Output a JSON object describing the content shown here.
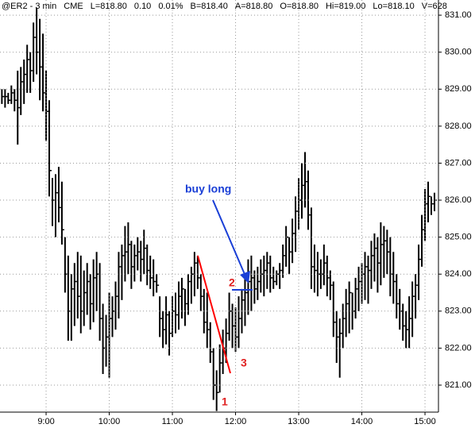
{
  "chart_data": {
    "type": "ohlc",
    "header": [
      "@ER2 - 3 min",
      "CME",
      "L=818.80",
      "0.10",
      "0.01%",
      "B=818.40",
      "A=818.80",
      "O=818.80",
      "Hi=819.00",
      "Lo=818.10",
      "V=628"
    ],
    "annotations": [
      "buy long",
      "1",
      "2",
      "3"
    ],
    "color": "#000000",
    "x": [
      498,
      501,
      504,
      507,
      510,
      513,
      516,
      519,
      522,
      525,
      528,
      531,
      534,
      537,
      540,
      543,
      546,
      549,
      552,
      555,
      558,
      561,
      564,
      567,
      570,
      573,
      576,
      579,
      582,
      585,
      588,
      591,
      594,
      597,
      600,
      603,
      606,
      609,
      612,
      615,
      618,
      621,
      624,
      627,
      630,
      633,
      636,
      639,
      642,
      645,
      648,
      651,
      654,
      657,
      660,
      663,
      666,
      669,
      672,
      675,
      678,
      681,
      684,
      687,
      690,
      693,
      696,
      699,
      702,
      705,
      708,
      711,
      714,
      717,
      720,
      723,
      726,
      729,
      732,
      735,
      738,
      741,
      744,
      747,
      750,
      753,
      756,
      759,
      762,
      765,
      768,
      771,
      774,
      777,
      780,
      783,
      786,
      789,
      792,
      795,
      798,
      801,
      804,
      807,
      810,
      813,
      816,
      819,
      822,
      825,
      828,
      831,
      834,
      837,
      840,
      843,
      846,
      849,
      852,
      855,
      858,
      861,
      864,
      867,
      870,
      873,
      876,
      879,
      882,
      885,
      888,
      891,
      894,
      897,
      900,
      903,
      906,
      909
    ],
    "high": [
      829.0,
      829.0,
      828.9,
      829.1,
      829.0,
      829.5,
      829.6,
      829.8,
      830.2,
      830.0,
      830.8,
      831.2,
      830.9,
      830.5,
      829.5,
      828.7,
      826.6,
      826.7,
      826.9,
      826.5,
      825.0,
      824.5,
      824.0,
      824.3,
      824.6,
      824.5,
      824.1,
      824.3,
      824.0,
      824.4,
      824.6,
      824.3,
      823.2,
      822.9,
      823.5,
      823.4,
      823.8,
      824.6,
      824.8,
      825.3,
      825.4,
      824.9,
      824.8,
      825.0,
      824.9,
      825.2,
      824.8,
      824.5,
      824.4,
      824.0,
      823.4,
      823.0,
      823.4,
      823.0,
      823.4,
      823.5,
      823.8,
      823.9,
      823.6,
      824.0,
      824.2,
      824.6,
      824.5,
      824.0,
      823.6,
      823.5,
      822.7,
      822.0,
      821.4,
      822.1,
      822.5,
      822.8,
      823.5,
      823.2,
      823.1,
      823.4,
      823.6,
      824.0,
      824.4,
      824.5,
      824.1,
      824.2,
      824.4,
      824.5,
      824.6,
      824.5,
      824.2,
      824.1,
      824.3,
      824.8,
      825.3,
      825.0,
      825.5,
      826.1,
      826.6,
      827.0,
      827.3,
      826.8,
      825.8,
      824.8,
      824.6,
      824.4,
      824.8,
      824.5,
      824.1,
      823.8,
      823.0,
      822.8,
      823.2,
      823.6,
      823.8,
      823.5,
      823.9,
      824.2,
      824.3,
      824.6,
      824.5,
      824.9,
      825.1,
      825.0,
      825.4,
      825.3,
      825.2,
      825.0,
      824.6,
      824.0,
      823.6,
      823.2,
      823.0,
      823.4,
      823.8,
      824.0,
      824.8,
      825.6,
      826.3,
      826.5,
      826.1,
      826.2
    ],
    "low": [
      828.6,
      828.5,
      828.6,
      828.6,
      828.4,
      827.5,
      828.3,
      828.6,
      828.9,
      828.9,
      829.2,
      829.4,
      828.7,
      828.4,
      827.6,
      826.1,
      825.3,
      825.0,
      825.4,
      824.8,
      823.5,
      822.2,
      822.2,
      822.6,
      822.8,
      822.4,
      822.6,
      822.9,
      822.5,
      822.7,
      823.0,
      822.2,
      821.3,
      821.5,
      821.2,
      822.3,
      822.5,
      822.8,
      823.3,
      823.8,
      824.0,
      823.6,
      823.8,
      824.1,
      823.8,
      824.0,
      823.7,
      823.6,
      823.4,
      823.5,
      822.3,
      822.0,
      822.1,
      821.8,
      822.3,
      822.4,
      822.5,
      822.8,
      822.6,
      822.9,
      823.2,
      823.4,
      823.6,
      823.0,
      822.4,
      822.0,
      821.6,
      820.6,
      820.3,
      820.8,
      821.3,
      821.6,
      822.2,
      822.0,
      821.9,
      822.0,
      822.4,
      822.6,
      822.9,
      823.0,
      823.2,
      823.3,
      823.5,
      823.4,
      823.6,
      823.5,
      823.6,
      823.7,
      823.6,
      823.9,
      824.2,
      824.0,
      824.3,
      824.6,
      825.2,
      825.5,
      825.8,
      825.2,
      823.6,
      823.5,
      823.4,
      823.6,
      823.7,
      823.4,
      823.3,
      822.3,
      821.6,
      821.2,
      822.0,
      822.3,
      822.4,
      822.5,
      822.8,
      823.0,
      823.2,
      823.3,
      823.2,
      823.6,
      823.8,
      823.5,
      823.7,
      823.9,
      824.0,
      823.4,
      823.2,
      822.8,
      822.5,
      822.2,
      822.0,
      822.0,
      822.3,
      822.8,
      823.3,
      824.2,
      824.9,
      825.4,
      825.6,
      825.7
    ],
    "close": [
      828.8,
      828.8,
      828.7,
      828.9,
      828.7,
      828.5,
      829.2,
      829.4,
      829.8,
      829.5,
      830.4,
      830.0,
      829.6,
      828.9,
      828.4,
      826.8,
      826.0,
      826.2,
      825.8,
      825.2,
      824.0,
      823.0,
      823.6,
      823.8,
      823.4,
      823.0,
      823.5,
      823.8,
      823.2,
      823.9,
      824.0,
      822.8,
      822.0,
      822.3,
      822.8,
      823.0,
      823.4,
      824.2,
      824.5,
      824.6,
      824.8,
      824.2,
      824.5,
      824.6,
      824.4,
      824.7,
      824.1,
      823.9,
      823.8,
      823.7,
      822.8,
      822.5,
      822.9,
      822.4,
      823.0,
      822.9,
      823.4,
      823.6,
      823.2,
      823.8,
      824.0,
      824.3,
      823.9,
      823.4,
      822.7,
      822.5,
      821.9,
      821.0,
      820.8,
      821.6,
      822.0,
      822.4,
      823.0,
      822.6,
      822.3,
      822.8,
      823.3,
      823.5,
      823.8,
      823.9,
      823.6,
      823.8,
      824.0,
      824.1,
      824.3,
      823.9,
      823.8,
      824.0,
      824.1,
      824.5,
      825.0,
      824.6,
      825.1,
      825.7,
      826.0,
      826.4,
      826.5,
      825.6,
      824.2,
      824.1,
      824.0,
      824.0,
      824.3,
      823.9,
      823.7,
      822.7,
      822.3,
      822.4,
      822.8,
      823.2,
      823.5,
      823.0,
      823.6,
      823.8,
      824.0,
      824.2,
      824.1,
      824.5,
      824.7,
      824.3,
      824.8,
      824.9,
      824.6,
      824.0,
      823.8,
      823.2,
      823.0,
      822.6,
      822.5,
      822.8,
      823.4,
      823.7,
      824.4,
      825.2,
      825.9,
      826.1,
      825.9,
      826.0
    ],
    "xlim": [
      496.2,
      912.8
    ],
    "xticks": [
      {
        "value": 540,
        "label": "9:00"
      },
      {
        "value": 600,
        "label": "10:00"
      },
      {
        "value": 660,
        "label": "11:00"
      },
      {
        "value": 720,
        "label": "12:00"
      },
      {
        "value": 780,
        "label": "13:00"
      },
      {
        "value": 840,
        "label": "14:00"
      },
      {
        "value": 900,
        "label": "15:00"
      }
    ],
    "ylim": [
      820.27,
      831.41
    ],
    "yticks": [
      {
        "value": 821,
        "label": "821.00"
      },
      {
        "value": 822,
        "label": "822.00"
      },
      {
        "value": 823,
        "label": "823.00"
      },
      {
        "value": 824,
        "label": "824.00"
      },
      {
        "value": 825,
        "label": "825.00"
      },
      {
        "value": 826,
        "label": "826.00"
      },
      {
        "value": 827,
        "label": "827.00"
      },
      {
        "value": 828,
        "label": "828.00"
      },
      {
        "value": 829,
        "label": "829.00"
      },
      {
        "value": 830,
        "label": "830.00"
      },
      {
        "value": 831,
        "label": "831.00"
      }
    ],
    "grid": true
  }
}
